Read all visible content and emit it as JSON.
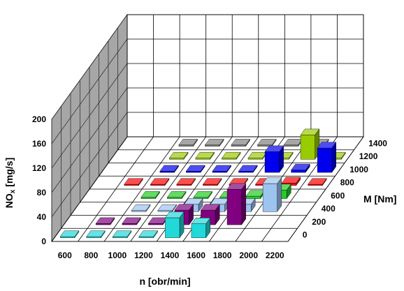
{
  "chart_data": {
    "type": "bar",
    "title": "",
    "xlabel": "n [obr/min]",
    "zlabel": "M [Nm]",
    "ylabel_main": "NO",
    "ylabel_sub": "x",
    "ylabel_unit": " [mg/s]",
    "ylim": [
      0,
      200
    ],
    "y_ticks": [
      "0",
      "40",
      "80",
      "120",
      "160",
      "200"
    ],
    "categories": [
      "600",
      "800",
      "1000",
      "1200",
      "1400",
      "1600",
      "1800",
      "2000",
      "2200"
    ],
    "depth_categories": [
      "0",
      "200",
      "400",
      "600",
      "800",
      "1000",
      "1200",
      "1400"
    ],
    "grid": true,
    "series": [
      {
        "name": "0",
        "color": "#22D8D8",
        "values": [
          2,
          2,
          2,
          2,
          33,
          23,
          null,
          null,
          null
        ]
      },
      {
        "name": "200",
        "color": "#800080",
        "values": [
          null,
          2,
          2,
          2,
          24,
          24,
          58,
          null,
          null
        ]
      },
      {
        "name": "400",
        "color": "#9DC3F0",
        "values": [
          null,
          null,
          2,
          2,
          12,
          12,
          12,
          46,
          null
        ]
      },
      {
        "name": "600",
        "color": "#22CC22",
        "values": [
          null,
          null,
          2,
          2,
          2,
          2,
          4,
          14,
          null
        ]
      },
      {
        "name": "800",
        "color": "#FF0000",
        "values": [
          null,
          2,
          2,
          2,
          2,
          2,
          2,
          4,
          2
        ]
      },
      {
        "name": "1000",
        "color": "#0000EE",
        "values": [
          null,
          null,
          2,
          2,
          2,
          2,
          34,
          4,
          40
        ]
      },
      {
        "name": "1200",
        "color": "#99CC00",
        "values": [
          null,
          null,
          2,
          2,
          2,
          2,
          2,
          40,
          2
        ]
      },
      {
        "name": "1400",
        "color": "#808080",
        "values": [
          null,
          null,
          2,
          2,
          2,
          2,
          2,
          2,
          null
        ]
      }
    ]
  }
}
